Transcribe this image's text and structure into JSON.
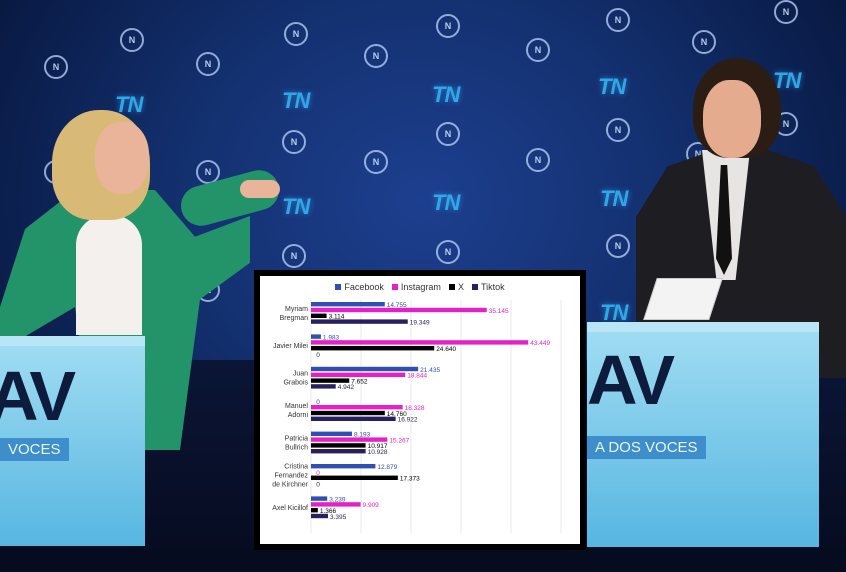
{
  "background": {
    "logo_text": "TN",
    "circle_logo_text": "N",
    "podium_left_band": "VOCES",
    "podium_right_band": "A DOS VOCES",
    "podium_glyph": "AV"
  },
  "colors": {
    "facebook": "#2f4fb5",
    "instagram": "#e620c8",
    "x": "#000000",
    "tiktok": "#28205e",
    "facebook_label": "#2f4fb5",
    "instagram_label": "#e620c8",
    "x_label": "#000000",
    "tiktok_label": "#28205e"
  },
  "chart_data": {
    "type": "bar",
    "orientation": "horizontal",
    "title": "",
    "xlabel": "",
    "ylabel": "",
    "xlim": [
      0,
      50000
    ],
    "x_ticks": [
      "0",
      "10.000",
      "20.000",
      "30.000",
      "40.000",
      "50.000"
    ],
    "x_tick_values": [
      0,
      10000,
      20000,
      30000,
      40000,
      50000
    ],
    "grid": true,
    "legend_position": "top",
    "categories": [
      [
        "Myriam",
        "Bregman"
      ],
      [
        "Javier Milei"
      ],
      [
        "Juan",
        "Grabois"
      ],
      [
        "Manuel",
        "Adorni"
      ],
      [
        "Patricia",
        "Bullrich"
      ],
      [
        "Cristina",
        "Fernandez",
        "de Kirchner"
      ],
      [
        "Axel Kicillof"
      ]
    ],
    "series": [
      {
        "name": "Facebook",
        "values": [
          14755,
          1983,
          21435,
          0,
          8193,
          12879,
          3239
        ],
        "labels": [
          "14.755",
          "1.983",
          "21.435",
          "0",
          "8.193",
          "12.879",
          "3.239"
        ]
      },
      {
        "name": "Instagram",
        "values": [
          35145,
          43449,
          18844,
          18328,
          15267,
          0,
          9909
        ],
        "labels": [
          "35.145",
          "43.449",
          "18.844",
          "18.328",
          "15.267",
          "0",
          "9.909"
        ]
      },
      {
        "name": "X",
        "values": [
          3114,
          24640,
          7652,
          14760,
          10917,
          17373,
          1366
        ],
        "labels": [
          "3.114",
          "24.640",
          "7.652",
          "14.760",
          "10.917",
          "17.373",
          "1.366"
        ]
      },
      {
        "name": "Tiktok",
        "values": [
          19349,
          0,
          4942,
          16922,
          10928,
          0,
          3395
        ],
        "labels": [
          "19.349",
          "0",
          "4.942",
          "16.922",
          "10.928",
          "0",
          "3.395"
        ]
      }
    ]
  }
}
